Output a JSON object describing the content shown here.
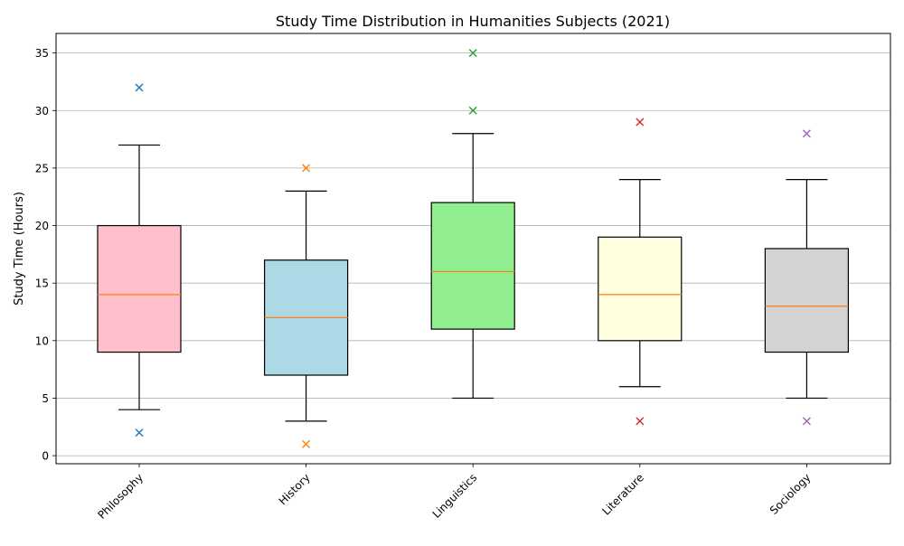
{
  "chart_data": {
    "type": "box",
    "title": "Study Time Distribution in Humanities Subjects (2021)",
    "xlabel": "",
    "ylabel": "Study Time (Hours)",
    "ylim": [
      -0.7,
      36.7
    ],
    "yticks": [
      0,
      5,
      10,
      15,
      20,
      25,
      30,
      35
    ],
    "grid": "y",
    "categories": [
      "Philosophy",
      "History",
      "Linguistics",
      "Literature",
      "Sociology"
    ],
    "series": [
      {
        "category": "Philosophy",
        "whisker_low": 4,
        "q1": 9,
        "median": 14,
        "q3": 20,
        "whisker_high": 27,
        "outliers": [
          2,
          32
        ],
        "fill": "#ffc0cb",
        "outlier_color": "#1f77b4"
      },
      {
        "category": "History",
        "whisker_low": 3,
        "q1": 7,
        "median": 12,
        "q3": 17,
        "whisker_high": 23,
        "outliers": [
          1,
          25
        ],
        "fill": "#add8e6",
        "outlier_color": "#ff7f0e"
      },
      {
        "category": "Linguistics",
        "whisker_low": 5,
        "q1": 11,
        "median": 16,
        "q3": 22,
        "whisker_high": 28,
        "outliers": [
          30,
          35
        ],
        "fill": "#90ee90",
        "outlier_color": "#2ca02c"
      },
      {
        "category": "Literature",
        "whisker_low": 6,
        "q1": 10,
        "median": 14,
        "q3": 19,
        "whisker_high": 24,
        "outliers": [
          3,
          29
        ],
        "fill": "#ffffe0",
        "outlier_color": "#d62728"
      },
      {
        "category": "Sociology",
        "whisker_low": 5,
        "q1": 9,
        "median": 13,
        "q3": 18,
        "whisker_high": 24,
        "outliers": [
          3,
          28
        ],
        "fill": "#d3d3d3",
        "outlier_color": "#9467bd"
      }
    ],
    "median_color": "#ff7f0e",
    "outlier_marker": "x"
  }
}
